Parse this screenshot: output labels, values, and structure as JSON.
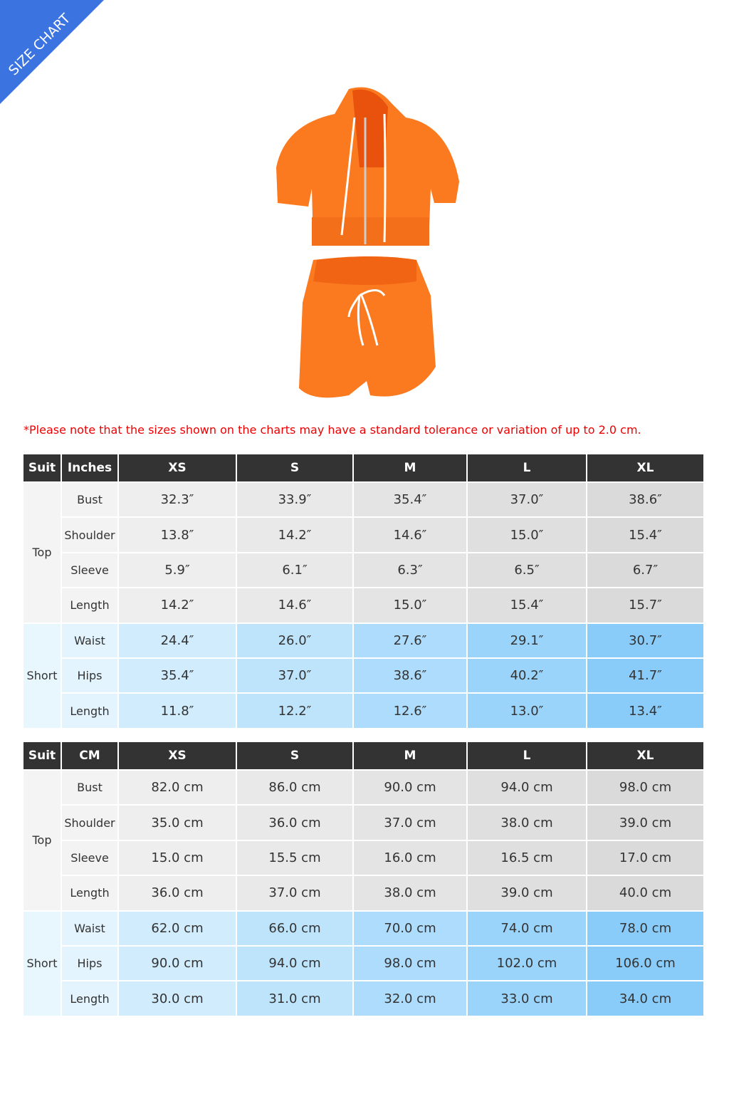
{
  "badge": "SIZE CHART",
  "note": "*Please note that the sizes shown on the charts may have a standard tolerance or variation of up to 2.0 cm.",
  "tables": [
    {
      "header": [
        "Suit",
        "Inches",
        "XS",
        "S",
        "M",
        "L",
        "XL"
      ],
      "groups": [
        {
          "label": "Top",
          "rows": [
            {
              "label": "Bust",
              "values": [
                "32.3″",
                "33.9″",
                "35.4″",
                "37.0″",
                "38.6″"
              ]
            },
            {
              "label": "Shoulder",
              "values": [
                "13.8″",
                "14.2″",
                "14.6″",
                "15.0″",
                "15.4″"
              ]
            },
            {
              "label": "Sleeve",
              "values": [
                "5.9″",
                "6.1″",
                "6.3″",
                "6.5″",
                "6.7″"
              ]
            },
            {
              "label": "Length",
              "values": [
                "14.2″",
                "14.6″",
                "15.0″",
                "15.4″",
                "15.7″"
              ]
            }
          ]
        },
        {
          "label": "Short",
          "rows": [
            {
              "label": "Waist",
              "values": [
                "24.4″",
                "26.0″",
                "27.6″",
                "29.1″",
                "30.7″"
              ]
            },
            {
              "label": "Hips",
              "values": [
                "35.4″",
                "37.0″",
                "38.6″",
                "40.2″",
                "41.7″"
              ]
            },
            {
              "label": "Length",
              "values": [
                "11.8″",
                "12.2″",
                "12.6″",
                "13.0″",
                "13.4″"
              ]
            }
          ]
        }
      ]
    },
    {
      "header": [
        "Suit",
        "CM",
        "XS",
        "S",
        "M",
        "L",
        "XL"
      ],
      "groups": [
        {
          "label": "Top",
          "rows": [
            {
              "label": "Bust",
              "values": [
                "82.0 cm",
                "86.0 cm",
                "90.0 cm",
                "94.0 cm",
                "98.0 cm"
              ]
            },
            {
              "label": "Shoulder",
              "values": [
                "35.0 cm",
                "36.0 cm",
                "37.0 cm",
                "38.0 cm",
                "39.0 cm"
              ]
            },
            {
              "label": "Sleeve",
              "values": [
                "15.0 cm",
                "15.5 cm",
                "16.0 cm",
                "16.5 cm",
                "17.0 cm"
              ]
            },
            {
              "label": "Length",
              "values": [
                "36.0 cm",
                "37.0 cm",
                "38.0 cm",
                "39.0 cm",
                "40.0 cm"
              ]
            }
          ]
        },
        {
          "label": "Short",
          "rows": [
            {
              "label": "Waist",
              "values": [
                "62.0 cm",
                "66.0 cm",
                "70.0 cm",
                "74.0 cm",
                "78.0 cm"
              ]
            },
            {
              "label": "Hips",
              "values": [
                "90.0 cm",
                "94.0 cm",
                "98.0 cm",
                "102.0 cm",
                "106.0 cm"
              ]
            },
            {
              "label": "Length",
              "values": [
                "30.0 cm",
                "31.0 cm",
                "32.0 cm",
                "33.0 cm",
                "34.0 cm"
              ]
            }
          ]
        }
      ]
    }
  ]
}
